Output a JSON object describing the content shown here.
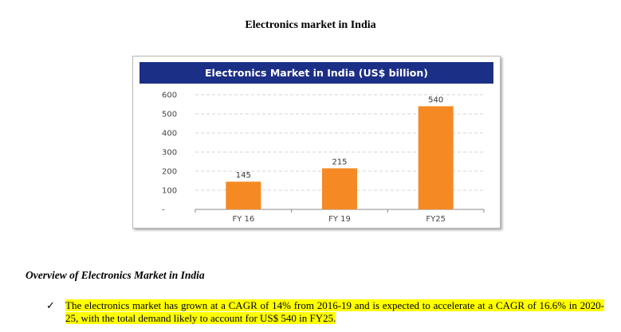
{
  "document": {
    "title": "Electronics market in India",
    "section_heading": "Overview of Electronics Market in India",
    "bullet_mark": "✓",
    "bullet_text": "The electronics market has grown at a CAGR of 14% from 2016-19 and is expected to accelerate at a CAGR of 16.6% in 2020-25, with the total demand likely to account for US$ 540 in FY25."
  },
  "chart_data": {
    "type": "bar",
    "title": "Electronics Market in India (US$ billion)",
    "categories": [
      "FY 16",
      "FY 19",
      "FY25"
    ],
    "values": [
      145,
      215,
      540
    ],
    "ylim": [
      0,
      600
    ],
    "yticks": [
      0,
      100,
      200,
      300,
      400,
      500,
      600
    ],
    "ytick_labels": [
      "-",
      "100",
      "200",
      "300",
      "400",
      "500",
      "600"
    ],
    "grid": true,
    "bar_color": "#f58a24",
    "title_bar_color": "#1c2f86"
  }
}
